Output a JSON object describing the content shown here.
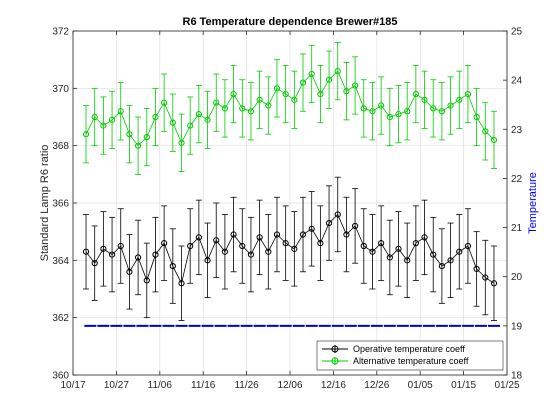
{
  "chart_data": {
    "type": "line",
    "title": "R6 Temperature dependence Brewer#185",
    "xlabel": "",
    "ylabel_left": "Standard Lamp R6 ratio",
    "ylabel_right": "Temperature",
    "x_type": "date",
    "x_range": [
      "10/17",
      "01/25"
    ],
    "x_tick_labels": [
      "10/17",
      "10/27",
      "11/06",
      "11/16",
      "11/26",
      "12/06",
      "12/16",
      "12/26",
      "01/05",
      "01/15",
      "01/25"
    ],
    "ylim_left": [
      360,
      372
    ],
    "y_ticks_left": [
      360,
      362,
      364,
      366,
      368,
      370,
      372
    ],
    "ylim_right": [
      18,
      25
    ],
    "y_ticks_right": [
      18,
      19,
      20,
      21,
      22,
      23,
      24,
      25
    ],
    "grid": true,
    "legend_position": "bottom-right",
    "series": [
      {
        "name": "Operative temperature coeff",
        "color": "#000000",
        "marker": "circle",
        "error_bars": true,
        "error_half_width": 1.3,
        "axis": "left",
        "x": [
          "10/20",
          "10/22",
          "10/24",
          "10/26",
          "10/28",
          "10/30",
          "11/01",
          "11/03",
          "11/05",
          "11/07",
          "11/09",
          "11/11",
          "11/13",
          "11/15",
          "11/17",
          "11/19",
          "11/21",
          "11/23",
          "11/25",
          "11/27",
          "11/29",
          "12/01",
          "12/03",
          "12/05",
          "12/07",
          "12/09",
          "12/11",
          "12/13",
          "12/15",
          "12/17",
          "12/19",
          "12/21",
          "12/23",
          "12/25",
          "12/27",
          "12/29",
          "12/31",
          "01/02",
          "01/04",
          "01/06",
          "01/08",
          "01/10",
          "01/12",
          "01/14",
          "01/16",
          "01/18",
          "01/20",
          "01/22"
        ],
        "values": [
          364.3,
          363.9,
          364.4,
          364.2,
          364.5,
          363.6,
          364.1,
          363.3,
          364.2,
          364.6,
          363.8,
          363.2,
          364.5,
          364.8,
          364.0,
          364.7,
          364.3,
          364.9,
          364.5,
          364.2,
          364.8,
          364.3,
          364.9,
          364.6,
          364.4,
          364.9,
          365.1,
          364.6,
          365.3,
          365.6,
          364.9,
          365.2,
          364.5,
          364.3,
          364.6,
          364.1,
          364.4,
          364.0,
          364.6,
          364.8,
          364.2,
          363.8,
          364.0,
          364.3,
          364.5,
          363.7,
          363.4,
          363.2
        ]
      },
      {
        "name": "Alternative temperature coeff",
        "color": "#00cc00",
        "marker": "circle",
        "error_bars": true,
        "error_half_width": 1.0,
        "axis": "left",
        "x": [
          "10/20",
          "10/22",
          "10/24",
          "10/26",
          "10/28",
          "10/30",
          "11/01",
          "11/03",
          "11/05",
          "11/07",
          "11/09",
          "11/11",
          "11/13",
          "11/15",
          "11/17",
          "11/19",
          "11/21",
          "11/23",
          "11/25",
          "11/27",
          "11/29",
          "12/01",
          "12/03",
          "12/05",
          "12/07",
          "12/09",
          "12/11",
          "12/13",
          "12/15",
          "12/17",
          "12/19",
          "12/21",
          "12/23",
          "12/25",
          "12/27",
          "12/29",
          "12/31",
          "01/02",
          "01/04",
          "01/06",
          "01/08",
          "01/10",
          "01/12",
          "01/14",
          "01/16",
          "01/18",
          "01/20",
          "01/22"
        ],
        "values": [
          368.4,
          369.0,
          368.7,
          368.9,
          369.2,
          368.4,
          368.0,
          368.3,
          369.0,
          369.5,
          368.8,
          368.1,
          368.7,
          369.1,
          368.9,
          369.5,
          369.3,
          369.8,
          369.3,
          369.2,
          369.6,
          369.4,
          370.0,
          369.8,
          369.6,
          370.2,
          370.5,
          369.8,
          370.3,
          370.6,
          369.9,
          370.1,
          369.3,
          369.2,
          369.4,
          369.0,
          369.1,
          369.2,
          369.8,
          369.6,
          369.3,
          369.2,
          369.4,
          369.6,
          369.8,
          369.0,
          368.5,
          368.2
        ]
      },
      {
        "name": "",
        "color": "#0000cc",
        "marker": "dash",
        "axis": "right",
        "x": [
          "10/21",
          "10/24",
          "10/27",
          "10/30",
          "11/02",
          "11/05",
          "11/08",
          "11/11",
          "11/14",
          "11/17",
          "11/20",
          "11/23",
          "11/26",
          "11/29",
          "12/02",
          "12/05",
          "12/08",
          "12/11",
          "12/14",
          "12/17",
          "12/20",
          "12/23",
          "12/26",
          "12/29",
          "01/01",
          "01/04",
          "01/07",
          "01/10",
          "01/13",
          "01/16",
          "01/19",
          "01/22"
        ],
        "values": [
          19.0,
          19.0,
          19.0,
          19.0,
          19.0,
          19.0,
          19.0,
          19.0,
          19.0,
          19.0,
          19.0,
          19.0,
          19.0,
          19.0,
          19.0,
          19.0,
          19.0,
          19.0,
          19.0,
          19.0,
          19.0,
          19.0,
          19.0,
          19.0,
          19.0,
          19.0,
          19.0,
          19.0,
          19.0,
          19.0,
          19.0,
          19.0
        ]
      }
    ]
  }
}
